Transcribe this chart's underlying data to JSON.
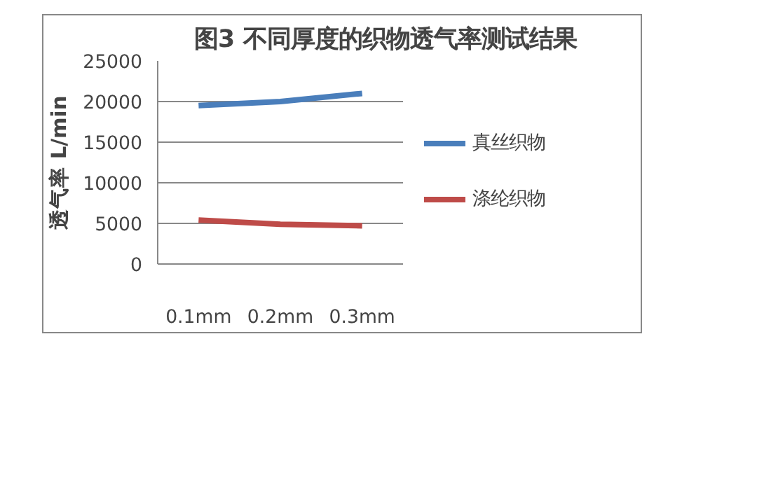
{
  "chart_data": {
    "type": "line",
    "title": "图3 不同厚度的织物透气率测试结果",
    "ylabel": "透气率 L/min",
    "categories": [
      "0.1mm",
      "0.2mm",
      "0.3mm"
    ],
    "series": [
      {
        "name": "真丝织物",
        "color": "#4a7ebb",
        "values": [
          19500,
          20000,
          21000
        ]
      },
      {
        "name": "涤纶织物",
        "color": "#be4b48",
        "values": [
          5400,
          4900,
          4700
        ]
      }
    ],
    "ylim": [
      0,
      25000
    ],
    "yticks": [
      0,
      5000,
      10000,
      15000,
      20000,
      25000
    ],
    "grid": "y",
    "legend": "right",
    "marker": "none",
    "line_style": "solid"
  }
}
